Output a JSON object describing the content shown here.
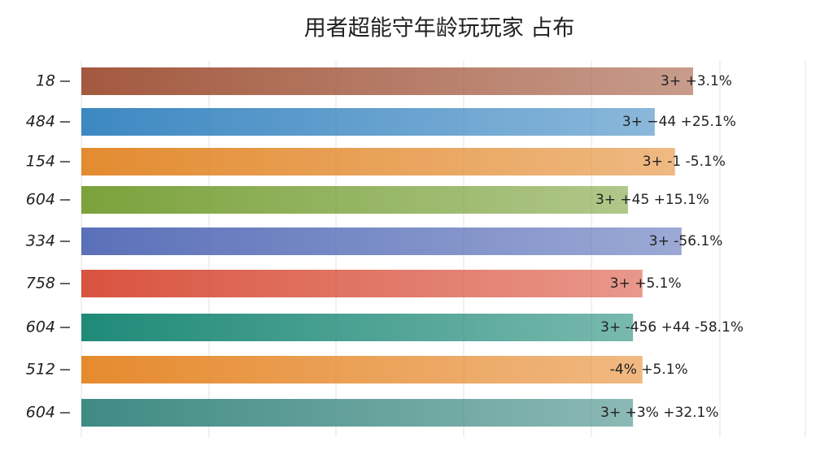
{
  "chart_data": {
    "type": "barh",
    "title": "用者超能守年龄玩玩家 占布",
    "categories": [
      "18",
      "484",
      "154",
      "604",
      "334",
      "758",
      "604",
      "512",
      "604"
    ],
    "values": [
      84.5,
      79.2,
      82.0,
      75.5,
      82.9,
      77.5,
      76.2,
      77.5,
      76.2
    ],
    "colors": [
      "#a3593f",
      "#3d88c2",
      "#e38b30",
      "#7ba23c",
      "#5a70b9",
      "#d9533f",
      "#1f8a78",
      "#e68a2e",
      "#3f8a83"
    ],
    "annotations": [
      "3+ +3.1%",
      "3+ −44 +25.1%",
      "3+ -1 -5.1%",
      "3+ +45 +15.1%",
      "3+ -56.1%",
      "3+ +5.1%",
      "3+ -456 +44 -58.1%",
      "-4% +5.1%",
      "3+ +3% +32.1%"
    ],
    "xlim": [
      0,
      100
    ]
  }
}
